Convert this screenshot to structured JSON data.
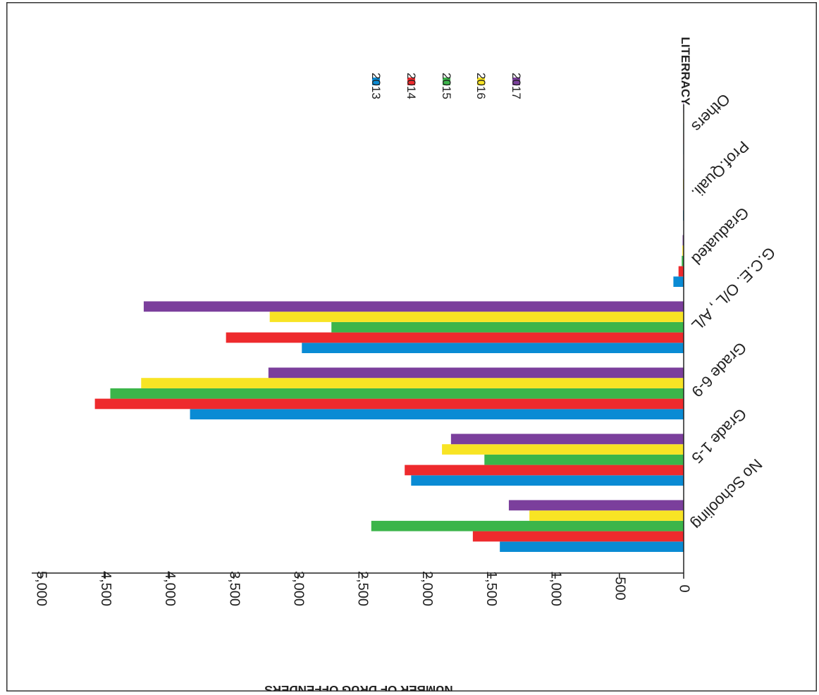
{
  "chart_data": {
    "type": "bar",
    "orientation": "horizontal",
    "rotated_180": true,
    "title": "LITERRACY",
    "xlabel": "NUMBER OF DRUG OFFENDERS",
    "xlim": [
      0,
      5000
    ],
    "xticks": [
      "0",
      "500",
      "1,000",
      "1,500",
      "2,000",
      "2,500",
      "3,000",
      "3,500",
      "4,000",
      "4,500",
      "5,000"
    ],
    "categories": [
      "No Schooling",
      "Grade 1-5",
      "Grade 6-9",
      "G.C.E. O/L , A/L",
      "Graduated",
      "Prof.Quali.",
      "Others"
    ],
    "series": [
      {
        "name": "2013",
        "color": "#0A8BD4",
        "values": [
          1430,
          2120,
          3840,
          2970,
          80,
          5,
          2
        ]
      },
      {
        "name": "2014",
        "color": "#EE2A2D",
        "values": [
          1640,
          2170,
          4580,
          3560,
          40,
          3,
          2
        ]
      },
      {
        "name": "2015",
        "color": "#3BB54A",
        "values": [
          2430,
          1550,
          4460,
          2740,
          15,
          3,
          1
        ]
      },
      {
        "name": "2016",
        "color": "#F8E424",
        "values": [
          1200,
          1880,
          4220,
          3220,
          10,
          5,
          1
        ]
      },
      {
        "name": "2017",
        "color": "#7B3F9C",
        "values": [
          1360,
          1810,
          3230,
          4200,
          8,
          3,
          1
        ]
      }
    ],
    "grid": false,
    "legend_position": "top"
  }
}
